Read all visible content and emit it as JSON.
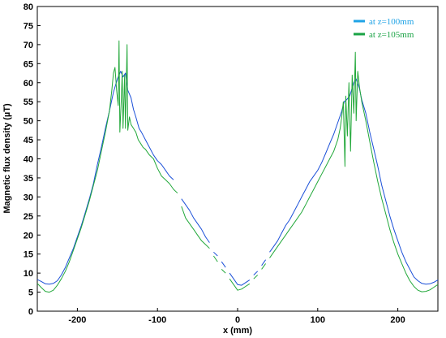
{
  "chart_data": {
    "type": "line",
    "xlabel": "x (mm)",
    "ylabel": "Magnetic flux density  (µT)",
    "xlim": [
      -250,
      250
    ],
    "ylim": [
      0,
      80
    ],
    "xticks": [
      -200,
      -100,
      0,
      100,
      200
    ],
    "yticks": [
      0,
      5,
      10,
      15,
      20,
      25,
      30,
      35,
      40,
      45,
      50,
      55,
      60,
      65,
      70,
      75,
      80
    ],
    "grid": false,
    "legend_position": "top-right",
    "series": [
      {
        "name": "at z=100mm",
        "color": "#1a4fd8",
        "legend_color": "#1fa3e6",
        "segments": [
          [
            [
              -250,
              8.3
            ],
            [
              -245,
              7.8
            ],
            [
              -240,
              7.2
            ],
            [
              -235,
              7.1
            ],
            [
              -230,
              7.3
            ],
            [
              -225,
              8.0
            ],
            [
              -220,
              9.5
            ],
            [
              -215,
              11.5
            ],
            [
              -210,
              14.0
            ],
            [
              -205,
              16.5
            ],
            [
              -200,
              19.5
            ],
            [
              -195,
              22.5
            ],
            [
              -190,
              26.0
            ],
            [
              -185,
              29.5
            ],
            [
              -180,
              33.5
            ],
            [
              -175,
              38.5
            ],
            [
              -170,
              43.0
            ],
            [
              -165,
              48.0
            ],
            [
              -160,
              52.5
            ],
            [
              -155,
              57.5
            ],
            [
              -150,
              61.0
            ],
            [
              -146,
              63.0
            ],
            [
              -143,
              61.5
            ],
            [
              -140,
              62.5
            ],
            [
              -137,
              58.0
            ],
            [
              -133,
              56.0
            ],
            [
              -130,
              53.0
            ],
            [
              -127,
              51.0
            ],
            [
              -123,
              48.0
            ],
            [
              -120,
              47.0
            ],
            [
              -115,
              45.0
            ],
            [
              -110,
              43.0
            ],
            [
              -105,
              41.0
            ],
            [
              -100,
              39.5
            ],
            [
              -95,
              38.5
            ],
            [
              -90,
              37.0
            ],
            [
              -85,
              35.5
            ],
            [
              -80,
              34.5
            ]
          ],
          [
            [
              -70,
              29.5
            ],
            [
              -65,
              28.0
            ],
            [
              -60,
              26.5
            ],
            [
              -55,
              24.5
            ],
            [
              -50,
              23.0
            ],
            [
              -45,
              21.5
            ],
            [
              -40,
              19.5
            ],
            [
              -35,
              18.0
            ]
          ],
          [
            [
              -30,
              15.5
            ],
            [
              -25,
              14.5
            ]
          ],
          [
            [
              -20,
              13.0
            ],
            [
              -15,
              11.5
            ]
          ],
          [
            [
              -10,
              10.0
            ],
            [
              -5,
              8.5
            ],
            [
              0,
              7.0
            ],
            [
              5,
              6.8
            ],
            [
              10,
              7.5
            ],
            [
              15,
              8.2
            ]
          ],
          [
            [
              20,
              9.5
            ],
            [
              25,
              10.5
            ]
          ],
          [
            [
              30,
              12.0
            ],
            [
              35,
              13.5
            ]
          ],
          [
            [
              40,
              15.5
            ],
            [
              45,
              17.0
            ],
            [
              50,
              18.5
            ],
            [
              55,
              20.5
            ],
            [
              60,
              22.5
            ],
            [
              65,
              24.0
            ],
            [
              70,
              26.0
            ],
            [
              75,
              28.0
            ],
            [
              80,
              30.0
            ],
            [
              85,
              32.0
            ],
            [
              90,
              34.0
            ],
            [
              95,
              35.5
            ],
            [
              100,
              37.0
            ],
            [
              105,
              39.0
            ],
            [
              110,
              41.5
            ],
            [
              115,
              44.0
            ],
            [
              120,
              46.5
            ],
            [
              125,
              49.5
            ],
            [
              130,
              52.5
            ],
            [
              133,
              55.0
            ],
            [
              136,
              55.5
            ],
            [
              140,
              56.5
            ],
            [
              145,
              60.0
            ],
            [
              148,
              61.0
            ],
            [
              152,
              58.5
            ],
            [
              155,
              55.5
            ],
            [
              160,
              52.0
            ],
            [
              165,
              47.0
            ],
            [
              170,
              42.5
            ],
            [
              175,
              38.0
            ],
            [
              180,
              33.0
            ],
            [
              185,
              29.0
            ],
            [
              190,
              25.0
            ],
            [
              195,
              21.5
            ],
            [
              200,
              18.5
            ],
            [
              205,
              15.5
            ],
            [
              210,
              13.0
            ],
            [
              215,
              11.0
            ],
            [
              220,
              9.0
            ],
            [
              225,
              8.0
            ],
            [
              230,
              7.3
            ],
            [
              235,
              7.1
            ],
            [
              240,
              7.2
            ],
            [
              245,
              7.6
            ],
            [
              250,
              8.2
            ]
          ]
        ]
      },
      {
        "name": "at z=105mm",
        "color": "#22a83a",
        "legend_color": "#1aa345",
        "segments": [
          [
            [
              -250,
              7.3
            ],
            [
              -245,
              6.2
            ],
            [
              -240,
              5.2
            ],
            [
              -235,
              5.0
            ],
            [
              -230,
              5.5
            ],
            [
              -225,
              6.8
            ],
            [
              -220,
              8.5
            ],
            [
              -215,
              10.5
            ],
            [
              -210,
              13.0
            ],
            [
              -205,
              16.0
            ],
            [
              -200,
              19.0
            ],
            [
              -195,
              22.0
            ],
            [
              -190,
              25.5
            ],
            [
              -185,
              29.0
            ],
            [
              -180,
              33.0
            ],
            [
              -175,
              37.0
            ],
            [
              -170,
              42.0
            ],
            [
              -165,
              47.0
            ],
            [
              -160,
              52.5
            ],
            [
              -157,
              58.0
            ],
            [
              -155,
              62.5
            ],
            [
              -153,
              64.0
            ],
            [
              -151,
              58.0
            ],
            [
              -149,
              54.0
            ],
            [
              -148,
              71.0
            ],
            [
              -147,
              47.0
            ],
            [
              -145,
              56.0
            ],
            [
              -144,
              63.0
            ],
            [
              -143,
              48.0
            ],
            [
              -141,
              62.0
            ],
            [
              -140,
              48.0
            ],
            [
              -138,
              70.0
            ],
            [
              -137,
              47.5
            ],
            [
              -135,
              51.0
            ],
            [
              -133,
              49.0
            ],
            [
              -130,
              48.0
            ],
            [
              -127,
              47.0
            ],
            [
              -124,
              45.0
            ],
            [
              -121,
              44.0
            ],
            [
              -118,
              43.0
            ],
            [
              -115,
              42.5
            ],
            [
              -110,
              41.0
            ],
            [
              -105,
              40.0
            ],
            [
              -100,
              37.5
            ],
            [
              -95,
              35.5
            ],
            [
              -90,
              34.5
            ],
            [
              -85,
              33.5
            ],
            [
              -80,
              32.0
            ],
            [
              -75,
              31.0
            ]
          ],
          [
            [
              -70,
              27.5
            ],
            [
              -65,
              24.5
            ],
            [
              -60,
              23.0
            ],
            [
              -55,
              21.5
            ],
            [
              -50,
              20.0
            ],
            [
              -45,
              18.5
            ],
            [
              -40,
              17.5
            ],
            [
              -35,
              16.5
            ]
          ],
          [
            [
              -30,
              14.5
            ],
            [
              -25,
              13.0
            ]
          ],
          [
            [
              -20,
              11.0
            ],
            [
              -15,
              10.0
            ]
          ],
          [
            [
              -10,
              8.5
            ],
            [
              -5,
              7.0
            ],
            [
              0,
              5.5
            ],
            [
              5,
              5.8
            ],
            [
              10,
              6.5
            ],
            [
              15,
              7.2
            ]
          ],
          [
            [
              20,
              8.5
            ],
            [
              25,
              9.5
            ]
          ],
          [
            [
              30,
              11.0
            ],
            [
              35,
              12.5
            ]
          ],
          [
            [
              40,
              14.0
            ],
            [
              45,
              15.5
            ],
            [
              50,
              17.0
            ],
            [
              55,
              18.5
            ],
            [
              60,
              20.0
            ],
            [
              65,
              21.5
            ],
            [
              70,
              23.0
            ],
            [
              75,
              24.5
            ],
            [
              80,
              26.0
            ],
            [
              85,
              28.0
            ],
            [
              90,
              30.0
            ],
            [
              95,
              32.0
            ],
            [
              100,
              34.0
            ],
            [
              105,
              36.0
            ],
            [
              110,
              38.0
            ],
            [
              115,
              40.0
            ],
            [
              120,
              42.0
            ],
            [
              125,
              45.0
            ],
            [
              128,
              48.0
            ],
            [
              130,
              51.0
            ],
            [
              132,
              55.0
            ],
            [
              134,
              38.0
            ],
            [
              135,
              56.5
            ],
            [
              137,
              46.0
            ],
            [
              139,
              60.0
            ],
            [
              141,
              42.0
            ],
            [
              143,
              62.0
            ],
            [
              145,
              52.0
            ],
            [
              147,
              68.0
            ],
            [
              148,
              50.0
            ],
            [
              150,
              63.0
            ],
            [
              152,
              59.0
            ],
            [
              155,
              55.0
            ],
            [
              160,
              50.0
            ],
            [
              165,
              44.5
            ],
            [
              170,
              39.0
            ],
            [
              175,
              34.0
            ],
            [
              180,
              29.5
            ],
            [
              185,
              25.5
            ],
            [
              190,
              21.5
            ],
            [
              195,
              18.0
            ],
            [
              200,
              15.0
            ],
            [
              205,
              12.5
            ],
            [
              210,
              10.0
            ],
            [
              215,
              8.0
            ],
            [
              220,
              6.5
            ],
            [
              225,
              5.5
            ],
            [
              230,
              5.1
            ],
            [
              235,
              5.2
            ],
            [
              240,
              5.6
            ],
            [
              245,
              6.3
            ],
            [
              250,
              7.0
            ]
          ]
        ]
      }
    ]
  }
}
